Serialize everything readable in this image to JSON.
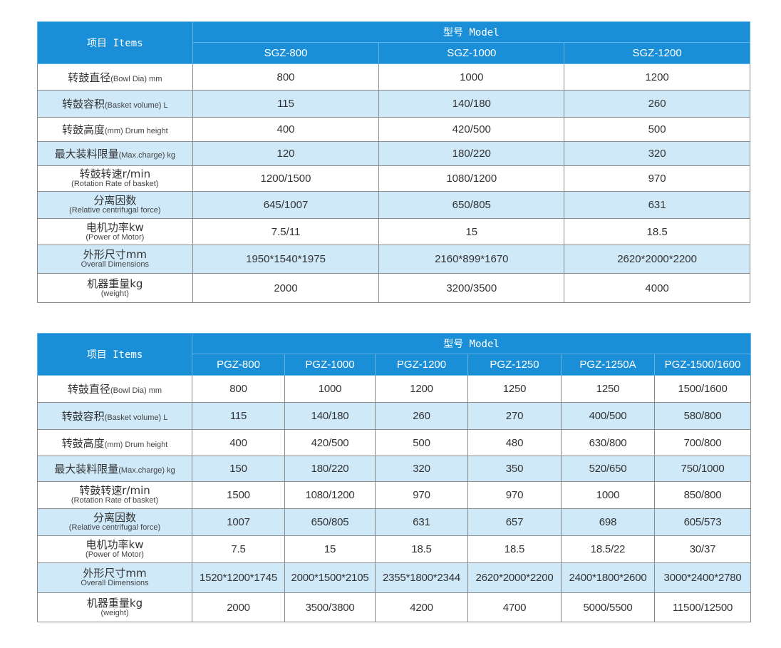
{
  "colors": {
    "header_bg": "#1a8fd8",
    "stripe_bg": "#cfe9f9",
    "border": "#8a8a8a"
  },
  "table1": {
    "items_header": "项目 Items",
    "model_header": "型号 Model",
    "models": [
      "SGZ-800",
      "SGZ-1000",
      "SGZ-1200"
    ],
    "rows": [
      {
        "cn": "转鼓直径",
        "en": "(Bowl Dia) mm",
        "values": [
          "800",
          "1000",
          "1200"
        ]
      },
      {
        "cn": "转鼓容积",
        "en": "(Basket volume) L",
        "values": [
          "115",
          "140/180",
          "260"
        ]
      },
      {
        "cn": "转鼓高度",
        "en": "(mm) Drum height",
        "values": [
          "400",
          "420/500",
          "500"
        ]
      },
      {
        "cn": "最大装料限量",
        "en": "(Max.charge) kg",
        "values": [
          "120",
          "180/220",
          "320"
        ]
      },
      {
        "cn": "转鼓转速r/min",
        "en": "(Rotation Rate of basket)",
        "values": [
          "1200/1500",
          "1080/1200",
          "970"
        ]
      },
      {
        "cn": "分离因数",
        "en": "(Relative centrifugal force)",
        "values": [
          "645/1007",
          "650/805",
          "631"
        ]
      },
      {
        "cn": "电机功率kw",
        "en": "(Power of Motor)",
        "values": [
          "7.5/11",
          "15",
          "18.5"
        ]
      },
      {
        "cn": "外形尺寸mm",
        "en": "Overall Dimensions",
        "values": [
          "1950*1540*1975",
          "2160*899*1670",
          "2620*2000*2200"
        ]
      },
      {
        "cn": "机器重量kg",
        "en": "(weight)",
        "values": [
          "2000",
          "3200/3500",
          "4000"
        ]
      }
    ]
  },
  "table2": {
    "items_header": "项目 Items",
    "model_header": "型号 Model",
    "models": [
      "PGZ-800",
      "PGZ-1000",
      "PGZ-1200",
      "PGZ-1250",
      "PGZ-1250A",
      "PGZ-1500/1600"
    ],
    "rows": [
      {
        "cn": "转鼓直径",
        "en": "(Bowl Dia) mm",
        "values": [
          "800",
          "1000",
          "1200",
          "1250",
          "1250",
          "1500/1600"
        ]
      },
      {
        "cn": "转鼓容积",
        "en": "(Basket volume) L",
        "values": [
          "115",
          "140/180",
          "260",
          "270",
          "400/500",
          "580/800"
        ]
      },
      {
        "cn": "转鼓高度",
        "en": "(mm) Drum height",
        "values": [
          "400",
          "420/500",
          "500",
          "480",
          "630/800",
          "700/800"
        ]
      },
      {
        "cn": "最大装料限量",
        "en": "(Max.charge) kg",
        "values": [
          "150",
          "180/220",
          "320",
          "350",
          "520/650",
          "750/1000"
        ]
      },
      {
        "cn": "转鼓转速r/min",
        "en": "(Rotation Rate of basket)",
        "values": [
          "1500",
          "1080/1200",
          "970",
          "970",
          "1000",
          "850/800"
        ]
      },
      {
        "cn": "分离因数",
        "en": "(Relative centrifugal force)",
        "values": [
          "1007",
          "650/805",
          "631",
          "657",
          "698",
          "605/573"
        ]
      },
      {
        "cn": "电机功率kw",
        "en": "(Power of Motor)",
        "values": [
          "7.5",
          "15",
          "18.5",
          "18.5",
          "18.5/22",
          "30/37"
        ]
      },
      {
        "cn": "外形尺寸mm",
        "en": "Overall Dimensions",
        "values": [
          "1520*1200*1745",
          "2000*1500*2105",
          "2355*1800*2344",
          "2620*2000*2200",
          "2400*1800*2600",
          "3000*2400*2780"
        ]
      },
      {
        "cn": "机器重量kg",
        "en": "(weight)",
        "values": [
          "2000",
          "3500/3800",
          "4200",
          "4700",
          "5000/5500",
          "11500/12500"
        ]
      }
    ]
  }
}
